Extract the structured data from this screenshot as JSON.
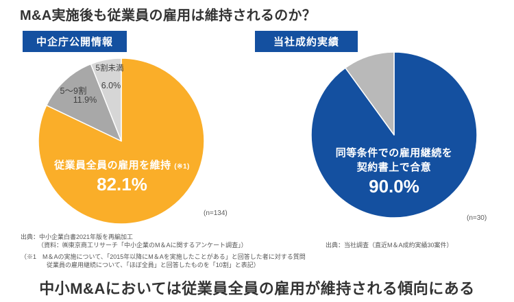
{
  "page": {
    "title": "M&A実施後も従業員の雇用は維持されるのか？",
    "conclusion": "中小M&Aにおいては従業員全員の雇用が維持される傾向にある"
  },
  "theme": {
    "badge_bg": "#1450A0",
    "title_color": "#333333",
    "footnote_color": "#555555"
  },
  "left_panel": {
    "badge": "中企庁公開情報",
    "sample": "(n=134)",
    "source_line1": "出典：中小企業白書2021年版を再編加工",
    "source_line2": "（資料：㈱東京商工リサーチ「中小企業のM＆Aに関するアンケート調査」）",
    "note_line1": "（※1　M＆Aの実施について、「2015年以降にM＆Aを実施したことがある」と回答した者に対する質問",
    "note_line2": "従業員の雇用継続について、「ほぼ全員」と回答したものを「10割」と表記）"
  },
  "right_panel": {
    "badge": "当社成約実績",
    "sample": "(n=30)",
    "source": "出典：当社調査（直近M＆A成約実績30案件）"
  },
  "chart_data": [
    {
      "type": "pie",
      "title": "中企庁公開情報",
      "labels": [
        "従業員全員の雇用を維持",
        "5〜9割",
        "5割未満"
      ],
      "values": [
        82.1,
        11.9,
        6.0
      ],
      "pct_labels": [
        "82.1%",
        "11.9%",
        "6.0%"
      ],
      "colors": [
        "#FAAE29",
        "#A8A8A8",
        "#D6D6D6"
      ],
      "center_ref": "(※1)",
      "sample_size": "(n=134)",
      "start_angle_deg": -90,
      "direction": "clockwise",
      "legend": "none"
    },
    {
      "type": "pie",
      "title": "当社成約実績",
      "labels": [
        "同等条件での雇用継続を契約書上で合意",
        ""
      ],
      "label_lines": [
        "同等条件での雇用継続を",
        "契約書上で合意"
      ],
      "values": [
        90.0,
        10.0
      ],
      "pct_labels": [
        "90.0%",
        ""
      ],
      "colors": [
        "#1450A0",
        "#B9B9B9"
      ],
      "sample_size": "(n=30)",
      "start_angle_deg": -90,
      "direction": "clockwise",
      "legend": "none"
    }
  ]
}
